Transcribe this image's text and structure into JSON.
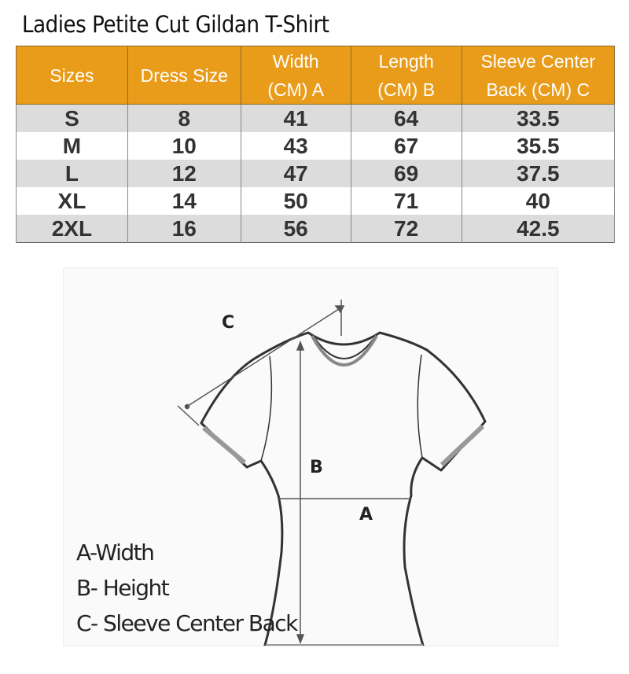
{
  "title": "Ladies Petite Cut Gildan T-Shirt",
  "colors": {
    "header_bg": "#e99c1a",
    "header_text": "#ffffff",
    "row_alt": "#dcdcdc"
  },
  "table": {
    "headers": [
      "Sizes",
      "Dress Size",
      "Width\n(CM) A",
      "Length\n(CM) B",
      "Sleeve Center\nBack (CM) C"
    ],
    "rows": [
      [
        "S",
        "8",
        "41",
        "64",
        "33.5"
      ],
      [
        "M",
        "10",
        "43",
        "67",
        "35.5"
      ],
      [
        "L",
        "12",
        "47",
        "69",
        "37.5"
      ],
      [
        "XL",
        "14",
        "50",
        "71",
        "40"
      ],
      [
        "2XL",
        "16",
        "56",
        "72",
        "42.5"
      ]
    ]
  },
  "diagram": {
    "labels": {
      "a": "A",
      "b": "B",
      "c": "C"
    },
    "legend": [
      "A-Width",
      "B- Height",
      "C- Sleeve Center Back"
    ]
  }
}
